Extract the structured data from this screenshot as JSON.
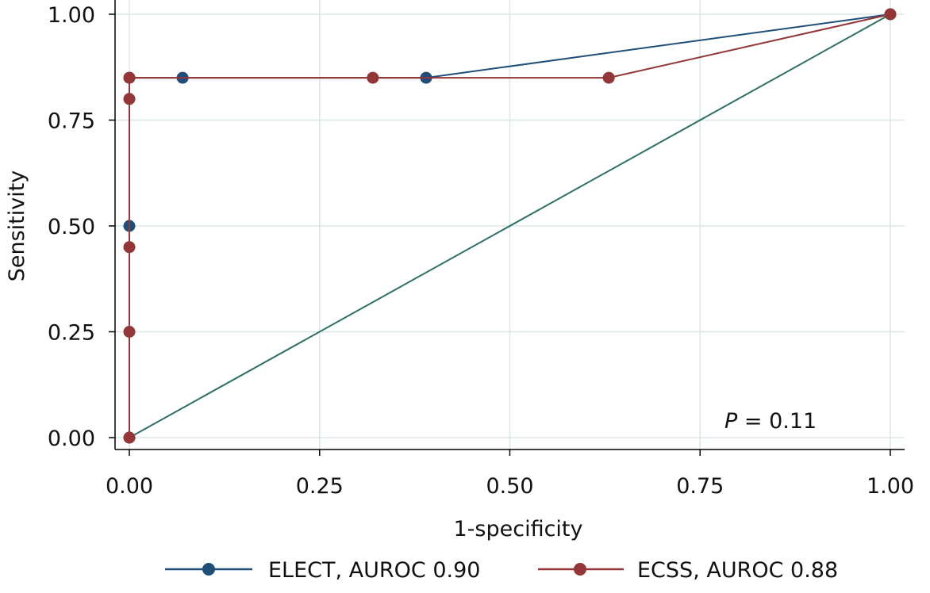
{
  "chart_data": {
    "type": "line",
    "title": "",
    "xlabel": "1-specificity",
    "ylabel": "Sensitivity",
    "xlim": [
      0,
      1
    ],
    "ylim": [
      0,
      1
    ],
    "x_ticks": [
      "0.00",
      "0.25",
      "0.50",
      "0.75",
      "1.00"
    ],
    "y_ticks": [
      "0.00",
      "0.25",
      "0.50",
      "0.75",
      "1.00"
    ],
    "grid": true,
    "legend_position": "bottom",
    "series": [
      {
        "name": "ELECT, AUROC 0.90",
        "color": "#1f4e79",
        "points": [
          [
            0,
            0
          ],
          [
            0,
            0.5
          ],
          [
            0,
            0.85
          ],
          [
            0.07,
            0.85
          ],
          [
            0.39,
            0.85
          ],
          [
            1,
            1
          ]
        ]
      },
      {
        "name": "ECSS, AUROC 0.88",
        "color": "#943638",
        "points": [
          [
            0,
            0
          ],
          [
            0,
            0.25
          ],
          [
            0,
            0.45
          ],
          [
            0,
            0.8
          ],
          [
            0,
            0.85
          ],
          [
            0.32,
            0.85
          ],
          [
            0.63,
            0.85
          ],
          [
            1,
            1
          ]
        ]
      }
    ],
    "reference_line": {
      "color": "#2e6f66",
      "points": [
        [
          0,
          0
        ],
        [
          1,
          1
        ]
      ]
    },
    "annotation": {
      "p_label": "P",
      "p_value_text": " = 0.11"
    }
  }
}
